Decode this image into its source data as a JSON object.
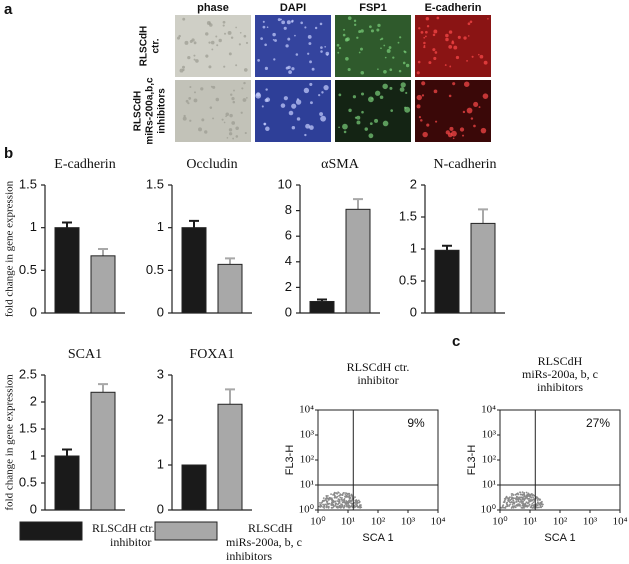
{
  "panel_labels": [
    "a",
    "b",
    "c"
  ],
  "panel_a": {
    "columns": [
      "phase",
      "DAPI",
      "FSP1",
      "E-cadherin"
    ],
    "rows": [
      [
        "RLSCdH",
        "ctr."
      ],
      [
        "RLSCdH",
        "miRs-200a,b,c",
        "inhibitors"
      ]
    ]
  },
  "legend": [
    {
      "name": [
        "RLSCdH  ctr.",
        "inhibitor"
      ],
      "color": "#1a1a1a"
    },
    {
      "name": [
        "RLSCdH",
        "miRs-200a, b, c",
        "inhibitors"
      ],
      "color": "#a8a8a8"
    }
  ],
  "chart_data": [
    {
      "type": "bar",
      "title": "E-cadherin",
      "ylabel": "fold change in gene expression",
      "categories": [
        null,
        null
      ],
      "values": [
        1.0,
        0.67
      ],
      "errors": [
        0.06,
        0.08
      ],
      "colors": [
        "#1a1a1a",
        "#a8a8a8"
      ],
      "ylim": [
        0,
        1.5
      ],
      "yticks": [
        0,
        0.5,
        1,
        1.5
      ]
    },
    {
      "type": "bar",
      "title": "Occludin",
      "categories": [
        null,
        null
      ],
      "values": [
        1.0,
        0.57
      ],
      "errors": [
        0.08,
        0.07
      ],
      "colors": [
        "#1a1a1a",
        "#a8a8a8"
      ],
      "ylim": [
        0,
        1.5
      ],
      "yticks": [
        0,
        0.5,
        1,
        1.5
      ]
    },
    {
      "type": "bar",
      "title": "αSMA",
      "categories": [
        null,
        null
      ],
      "values": [
        0.9,
        8.1
      ],
      "errors": [
        0.15,
        0.8
      ],
      "colors": [
        "#1a1a1a",
        "#a8a8a8"
      ],
      "ylim": [
        0,
        10
      ],
      "yticks": [
        0,
        2,
        4,
        6,
        8,
        10
      ]
    },
    {
      "type": "bar",
      "title": "N-cadherin",
      "categories": [
        null,
        null
      ],
      "values": [
        0.98,
        1.4
      ],
      "errors": [
        0.07,
        0.22
      ],
      "colors": [
        "#1a1a1a",
        "#a8a8a8"
      ],
      "ylim": [
        0,
        2
      ],
      "yticks": [
        0,
        0.5,
        1,
        1.5,
        2
      ]
    },
    {
      "type": "bar",
      "title": "SCA1",
      "ylabel": "fold change in gene expression",
      "categories": [
        null,
        null
      ],
      "values": [
        1.0,
        2.18
      ],
      "errors": [
        0.12,
        0.15
      ],
      "colors": [
        "#1a1a1a",
        "#a8a8a8"
      ],
      "ylim": [
        0,
        2.5
      ],
      "yticks": [
        0,
        0.5,
        1,
        1.5,
        2,
        2.5
      ]
    },
    {
      "type": "bar",
      "title": "FOXA1",
      "categories": [
        null,
        null
      ],
      "values": [
        1.0,
        2.35
      ],
      "errors": [
        0,
        0.33
      ],
      "colors": [
        "#1a1a1a",
        "#a8a8a8"
      ],
      "ylim": [
        0,
        3
      ],
      "yticks": [
        0,
        1,
        2,
        3
      ]
    },
    {
      "type": "flow",
      "title": [
        "RLSCdH  ctr.",
        "inhibitor"
      ],
      "annotation": "9%",
      "xlabel": "SCA 1",
      "ylabel": "FL3-H",
      "log_scale": true,
      "xlim": [
        1,
        10000
      ],
      "ylim": [
        1,
        10000
      ],
      "gate": [
        15,
        10
      ],
      "xticks": [
        {
          "value": 1,
          "label": "10⁰"
        },
        {
          "value": 10,
          "label": "10¹"
        },
        {
          "value": 100,
          "label": "10²"
        },
        {
          "value": 1000,
          "label": "10³"
        },
        {
          "value": 10000,
          "label": "10⁴"
        }
      ],
      "yticks": [
        {
          "value": 1,
          "label": "10⁰"
        },
        {
          "value": 10,
          "label": "10¹"
        },
        {
          "value": 100,
          "label": "10²"
        },
        {
          "value": 1000,
          "label": "10³"
        },
        {
          "value": 10000,
          "label": "10⁴"
        }
      ]
    },
    {
      "type": "flow",
      "title": [
        "RLSCdH",
        "miRs-200a, b, c",
        "inhibitors"
      ],
      "annotation": "27%",
      "xlabel": "SCA 1",
      "ylabel": "FL3-H",
      "log_scale": true,
      "xlim": [
        1,
        10000
      ],
      "ylim": [
        1,
        10000
      ],
      "gate": [
        15,
        10
      ],
      "xticks": [
        {
          "value": 1,
          "label": "10⁰"
        },
        {
          "value": 10,
          "label": "10¹"
        },
        {
          "value": 100,
          "label": "10²"
        },
        {
          "value": 1000,
          "label": "10³"
        },
        {
          "value": 10000,
          "label": "10⁴"
        }
      ],
      "yticks": [
        {
          "value": 1,
          "label": "10⁰"
        },
        {
          "value": 10,
          "label": "10¹"
        },
        {
          "value": 100,
          "label": "10²"
        },
        {
          "value": 1000,
          "label": "10³"
        },
        {
          "value": 10000,
          "label": "10⁴"
        }
      ]
    }
  ]
}
